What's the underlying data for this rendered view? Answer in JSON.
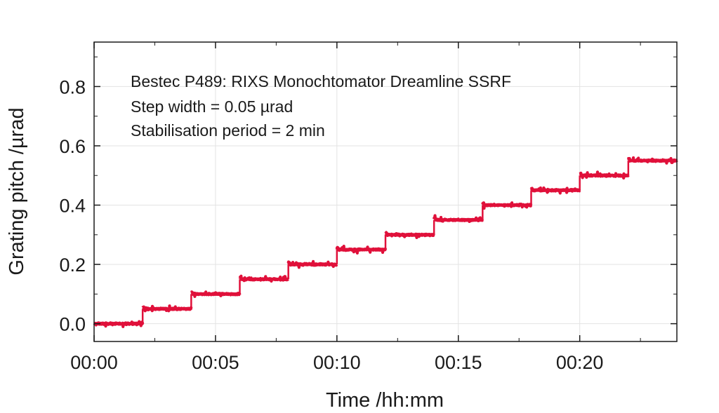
{
  "chart_data": {
    "type": "line",
    "title": "",
    "xlabel": "Time /hh:mm",
    "ylabel": "Grating pitch /µrad",
    "x_unit": "minutes",
    "xlim": [
      0,
      24
    ],
    "ylim": [
      -0.06,
      0.95
    ],
    "xticks": [
      0,
      5,
      10,
      15,
      20
    ],
    "xtick_labels": [
      "00:00",
      "00:05",
      "00:10",
      "00:15",
      "00:20"
    ],
    "yticks": [
      0.0,
      0.2,
      0.4,
      0.6,
      0.8
    ],
    "ytick_labels": [
      "0.0",
      "0.2",
      "0.4",
      "0.6",
      "0.8"
    ],
    "grid": true,
    "annotations": [
      "Bestec P489: RIXS Monochtomator Dreamline SSRF",
      "Step width = 0.05 µrad",
      "Stabilisation period = 2 min"
    ],
    "series": [
      {
        "name": "Grating pitch",
        "color": "#e0103a",
        "step_minutes": 2,
        "levels": [
          0.0,
          0.05,
          0.1,
          0.15,
          0.2,
          0.25,
          0.3,
          0.35,
          0.4,
          0.45,
          0.5,
          0.55
        ]
      }
    ]
  },
  "colors": {
    "series": "#e0103a",
    "grid": "#e3e3e3",
    "axis": "#1a1a1a"
  }
}
